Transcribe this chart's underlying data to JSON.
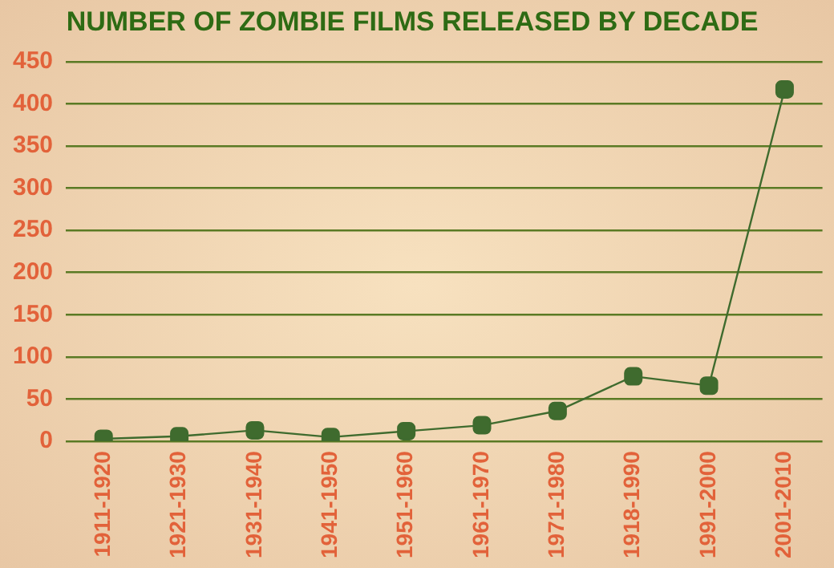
{
  "chart_data": {
    "type": "line",
    "title": "NUMBER OF ZOMBIE FILMS RELEASED BY DECADE",
    "categories": [
      "1911-1920",
      "1921-1930",
      "1931-1940",
      "1941-1950",
      "1951-1960",
      "1961-1970",
      "1971-1980",
      "1918-1990",
      "1991-2000",
      "2001-2010"
    ],
    "series": [
      {
        "color": "#3f6b2e",
        "values": [
          3,
          6,
          13,
          5,
          12,
          19,
          36,
          77,
          66,
          417
        ]
      }
    ],
    "ylim": [
      0,
      450
    ],
    "yticks": [
      0,
      50,
      100,
      150,
      200,
      250,
      300,
      350,
      400,
      450
    ],
    "grid": "y",
    "legend": false,
    "marker": "square",
    "line_style": "solid"
  }
}
